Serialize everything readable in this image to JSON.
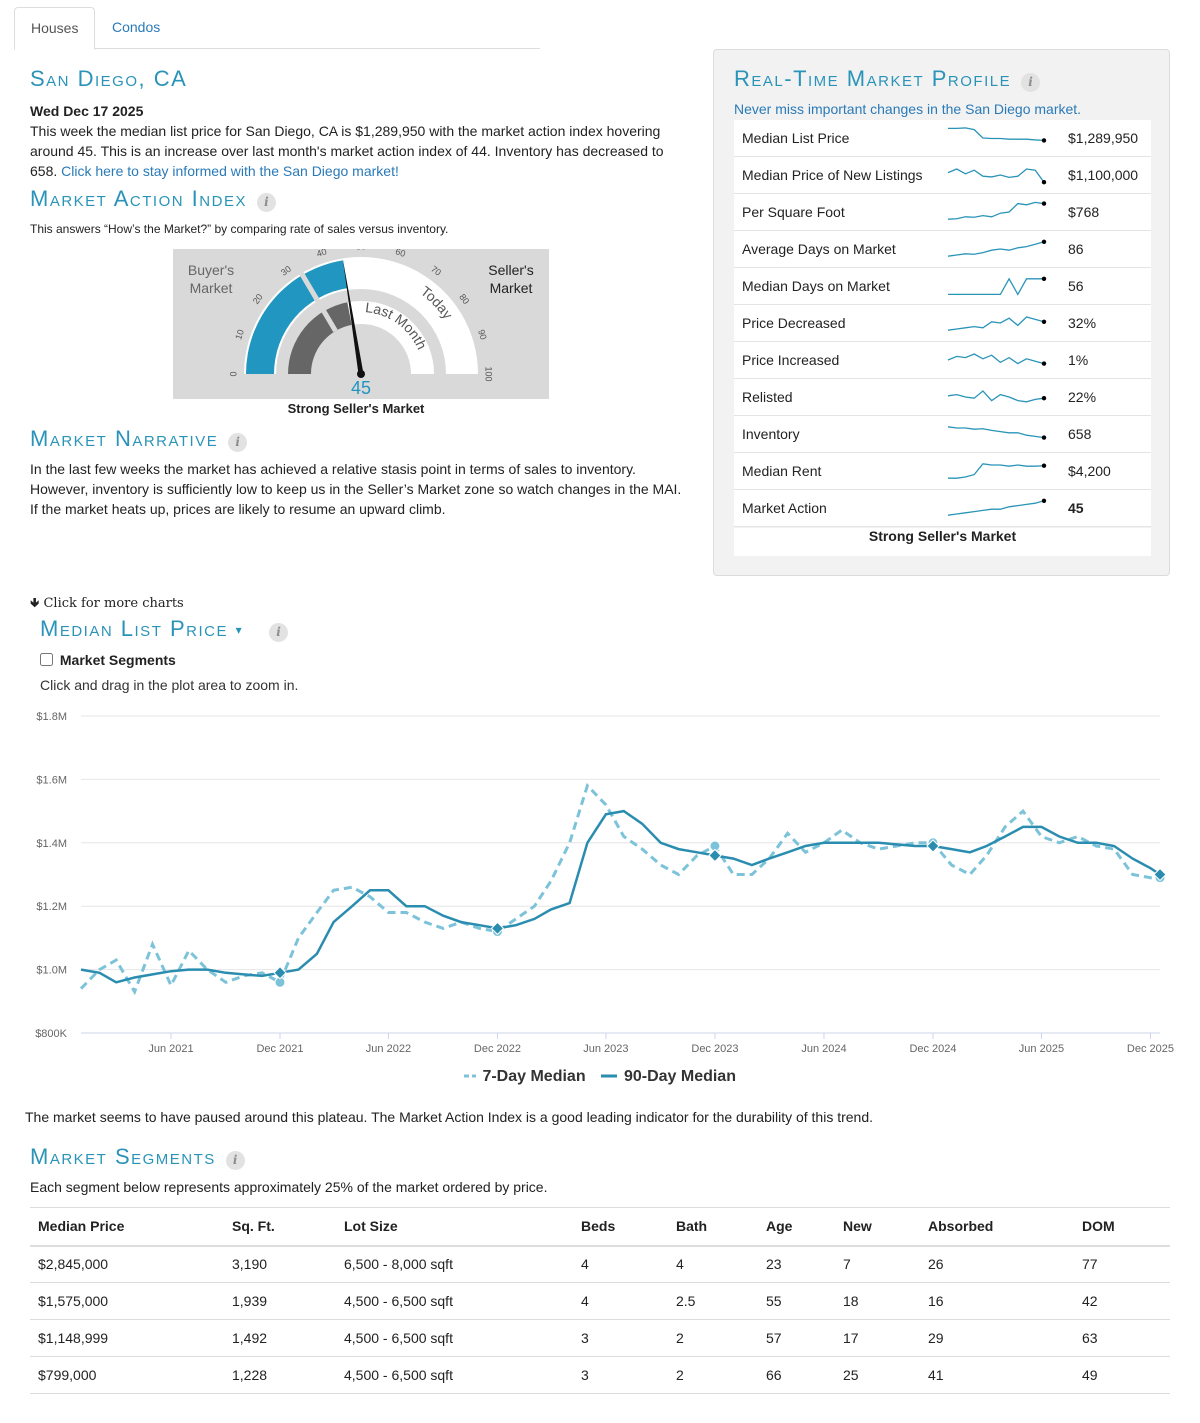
{
  "tabs": [
    {
      "label": "Houses"
    },
    {
      "label": "Condos"
    }
  ],
  "location_title": "San Diego, CA",
  "summary": {
    "date": "Wed Dec 17 2025",
    "text": "This week the median list price for San Diego, CA is $1,289,950 with the market action index hovering around 45. This is an increase over last month's market action index of 44. Inventory has decreased to 658.",
    "link": "Click here to stay informed with the San Diego market!"
  },
  "mai": {
    "title": "Market Action Index",
    "description": "This answers “How’s the Market?” by comparing rate of sales versus inventory.",
    "buyers_label_1": "Buyer's",
    "buyers_label_2": "Market",
    "sellers_label_1": "Seller's",
    "sellers_label_2": "Market",
    "last_month_label": "Last Month",
    "today_label": "Today",
    "value": 45,
    "last_month_value": 44,
    "value_text": "45",
    "ticks": [
      "0",
      "10",
      "20",
      "30",
      "40",
      "50",
      "60",
      "70",
      "80",
      "90",
      "100"
    ],
    "caption": "Strong Seller's Market"
  },
  "narrative": {
    "title": "Market Narrative",
    "text": "In the last few weeks the market has achieved a relative stasis point in terms of sales to inventory. However, inventory is sufficiently low to keep us in the Seller’s Market zone so watch changes in the MAI. If the market heats up, prices are likely to resume an upward climb."
  },
  "profile": {
    "title": "Real-Time Market Profile",
    "subtitle": "Never miss important changes in the San Diego market.",
    "rows": [
      {
        "label": "Median List Price",
        "value": "$1,289,950",
        "spark": [
          0.9,
          0.9,
          0.92,
          0.85,
          0.5,
          0.48,
          0.48,
          0.45,
          0.45,
          0.45,
          0.42,
          0.4
        ]
      },
      {
        "label": "Median Price of New Listings",
        "value": "$1,100,000",
        "spark": [
          0.6,
          0.75,
          0.55,
          0.7,
          0.45,
          0.42,
          0.5,
          0.4,
          0.45,
          0.75,
          0.7,
          0.2
        ]
      },
      {
        "label": "Per Square Foot",
        "value": "$768",
        "spark": [
          0.2,
          0.22,
          0.3,
          0.28,
          0.35,
          0.3,
          0.45,
          0.5,
          0.85,
          0.8,
          0.9,
          0.85
        ]
      },
      {
        "label": "Average Days on Market",
        "value": "86",
        "spark": [
          0.2,
          0.25,
          0.3,
          0.28,
          0.35,
          0.45,
          0.5,
          0.45,
          0.55,
          0.6,
          0.7,
          0.8
        ]
      },
      {
        "label": "Median Days on Market",
        "value": "56",
        "spark": [
          0.15,
          0.15,
          0.15,
          0.15,
          0.15,
          0.15,
          0.15,
          0.8,
          0.15,
          0.8,
          0.8,
          0.8
        ]
      },
      {
        "label": "Price Decreased",
        "value": "32%",
        "spark": [
          0.2,
          0.25,
          0.3,
          0.35,
          0.3,
          0.55,
          0.5,
          0.7,
          0.4,
          0.75,
          0.65,
          0.55
        ]
      },
      {
        "label": "Price Increased",
        "value": "1%",
        "spark": [
          0.5,
          0.65,
          0.6,
          0.75,
          0.55,
          0.7,
          0.4,
          0.6,
          0.35,
          0.55,
          0.45,
          0.35
        ]
      },
      {
        "label": "Relisted",
        "value": "22%",
        "spark": [
          0.55,
          0.6,
          0.5,
          0.45,
          0.75,
          0.35,
          0.6,
          0.5,
          0.35,
          0.3,
          0.4,
          0.45
        ]
      },
      {
        "label": "Inventory",
        "value": "658",
        "spark": [
          0.8,
          0.75,
          0.75,
          0.7,
          0.72,
          0.65,
          0.6,
          0.55,
          0.55,
          0.45,
          0.4,
          0.35
        ]
      },
      {
        "label": "Median Rent",
        "value": "$4,200",
        "spark": [
          0.2,
          0.2,
          0.25,
          0.35,
          0.8,
          0.75,
          0.75,
          0.7,
          0.75,
          0.7,
          0.7,
          0.72
        ]
      },
      {
        "label": "Market Action",
        "value": "45",
        "bold": true,
        "spark": [
          0.2,
          0.25,
          0.3,
          0.35,
          0.4,
          0.45,
          0.45,
          0.55,
          0.6,
          0.65,
          0.7,
          0.8
        ]
      }
    ],
    "caption": "Strong Seller's Market"
  },
  "more_charts": "Click for more charts",
  "median_chart": {
    "title": "Median List Price",
    "segments_checkbox": "Market Segments",
    "hint": "Click and drag in the plot area to zoom in."
  },
  "chart_data": {
    "type": "line",
    "x_ticks": [
      "Jun 2021",
      "Dec 2021",
      "Jun 2022",
      "Dec 2022",
      "Jun 2023",
      "Dec 2023",
      "Jun 2024",
      "Dec 2024",
      "Jun 2025",
      "Dec 2025"
    ],
    "y_ticks": [
      "$800K",
      "$1.0M",
      "$1.2M",
      "$1.4M",
      "$1.6M",
      "$1.8M"
    ],
    "ylim": [
      800000,
      1800000
    ],
    "xlim": [
      "2021-01-01",
      "2025-12-17"
    ],
    "grid": true,
    "legend_position": "bottom-center",
    "series": [
      {
        "name": "7-Day Median",
        "style": "dashed",
        "color": "#7cc3d9",
        "points": [
          [
            "2021-01-01",
            940000
          ],
          [
            "2021-02-01",
            1000000
          ],
          [
            "2021-03-01",
            1030000
          ],
          [
            "2021-04-01",
            930000
          ],
          [
            "2021-05-01",
            1080000
          ],
          [
            "2021-06-01",
            950000
          ],
          [
            "2021-07-01",
            1060000
          ],
          [
            "2021-08-01",
            1000000
          ],
          [
            "2021-09-01",
            960000
          ],
          [
            "2021-10-01",
            980000
          ],
          [
            "2021-11-01",
            990000
          ],
          [
            "2021-12-01",
            960000
          ],
          [
            "2022-01-01",
            1100000
          ],
          [
            "2022-02-01",
            1180000
          ],
          [
            "2022-03-01",
            1250000
          ],
          [
            "2022-04-01",
            1260000
          ],
          [
            "2022-05-01",
            1230000
          ],
          [
            "2022-06-01",
            1180000
          ],
          [
            "2022-07-01",
            1180000
          ],
          [
            "2022-08-01",
            1150000
          ],
          [
            "2022-09-01",
            1130000
          ],
          [
            "2022-10-01",
            1150000
          ],
          [
            "2022-11-01",
            1130000
          ],
          [
            "2022-12-01",
            1120000
          ],
          [
            "2023-01-01",
            1160000
          ],
          [
            "2023-02-01",
            1200000
          ],
          [
            "2023-03-01",
            1280000
          ],
          [
            "2023-04-01",
            1400000
          ],
          [
            "2023-05-01",
            1580000
          ],
          [
            "2023-06-01",
            1520000
          ],
          [
            "2023-07-01",
            1420000
          ],
          [
            "2023-08-01",
            1380000
          ],
          [
            "2023-09-01",
            1330000
          ],
          [
            "2023-10-01",
            1300000
          ],
          [
            "2023-11-01",
            1360000
          ],
          [
            "2023-12-01",
            1390000
          ],
          [
            "2024-01-01",
            1300000
          ],
          [
            "2024-02-01",
            1300000
          ],
          [
            "2024-03-01",
            1350000
          ],
          [
            "2024-04-01",
            1430000
          ],
          [
            "2024-05-01",
            1370000
          ],
          [
            "2024-06-01",
            1400000
          ],
          [
            "2024-07-01",
            1440000
          ],
          [
            "2024-08-01",
            1400000
          ],
          [
            "2024-09-01",
            1380000
          ],
          [
            "2024-10-01",
            1390000
          ],
          [
            "2024-11-01",
            1400000
          ],
          [
            "2024-12-01",
            1400000
          ],
          [
            "2025-01-01",
            1330000
          ],
          [
            "2025-02-01",
            1300000
          ],
          [
            "2025-03-01",
            1360000
          ],
          [
            "2025-04-01",
            1450000
          ],
          [
            "2025-05-01",
            1500000
          ],
          [
            "2025-06-01",
            1420000
          ],
          [
            "2025-07-01",
            1400000
          ],
          [
            "2025-08-01",
            1420000
          ],
          [
            "2025-09-01",
            1390000
          ],
          [
            "2025-10-01",
            1380000
          ],
          [
            "2025-11-01",
            1300000
          ],
          [
            "2025-12-01",
            1290000
          ],
          [
            "2025-12-17",
            1290000
          ]
        ]
      },
      {
        "name": "90-Day Median",
        "style": "solid",
        "color": "#2a8db0",
        "points": [
          [
            "2021-01-01",
            1000000
          ],
          [
            "2021-02-01",
            990000
          ],
          [
            "2021-03-01",
            960000
          ],
          [
            "2021-04-01",
            975000
          ],
          [
            "2021-05-01",
            985000
          ],
          [
            "2021-06-01",
            995000
          ],
          [
            "2021-07-01",
            1000000
          ],
          [
            "2021-08-01",
            1000000
          ],
          [
            "2021-09-01",
            990000
          ],
          [
            "2021-10-01",
            985000
          ],
          [
            "2021-11-01",
            980000
          ],
          [
            "2021-12-01",
            990000
          ],
          [
            "2022-01-01",
            1000000
          ],
          [
            "2022-02-01",
            1050000
          ],
          [
            "2022-03-01",
            1150000
          ],
          [
            "2022-04-01",
            1200000
          ],
          [
            "2022-05-01",
            1250000
          ],
          [
            "2022-06-01",
            1250000
          ],
          [
            "2022-07-01",
            1200000
          ],
          [
            "2022-08-01",
            1200000
          ],
          [
            "2022-09-01",
            1170000
          ],
          [
            "2022-10-01",
            1150000
          ],
          [
            "2022-11-01",
            1140000
          ],
          [
            "2022-12-01",
            1130000
          ],
          [
            "2023-01-01",
            1140000
          ],
          [
            "2023-02-01",
            1160000
          ],
          [
            "2023-03-01",
            1190000
          ],
          [
            "2023-04-01",
            1210000
          ],
          [
            "2023-05-01",
            1400000
          ],
          [
            "2023-06-01",
            1490000
          ],
          [
            "2023-07-01",
            1500000
          ],
          [
            "2023-08-01",
            1460000
          ],
          [
            "2023-09-01",
            1400000
          ],
          [
            "2023-10-01",
            1380000
          ],
          [
            "2023-11-01",
            1370000
          ],
          [
            "2023-12-01",
            1360000
          ],
          [
            "2024-01-01",
            1350000
          ],
          [
            "2024-02-01",
            1330000
          ],
          [
            "2024-03-01",
            1350000
          ],
          [
            "2024-04-01",
            1370000
          ],
          [
            "2024-05-01",
            1390000
          ],
          [
            "2024-06-01",
            1400000
          ],
          [
            "2024-07-01",
            1400000
          ],
          [
            "2024-08-01",
            1400000
          ],
          [
            "2024-09-01",
            1400000
          ],
          [
            "2024-10-01",
            1395000
          ],
          [
            "2024-11-01",
            1390000
          ],
          [
            "2024-12-01",
            1390000
          ],
          [
            "2025-01-01",
            1380000
          ],
          [
            "2025-02-01",
            1370000
          ],
          [
            "2025-03-01",
            1390000
          ],
          [
            "2025-04-01",
            1420000
          ],
          [
            "2025-05-01",
            1450000
          ],
          [
            "2025-06-01",
            1450000
          ],
          [
            "2025-07-01",
            1420000
          ],
          [
            "2025-08-01",
            1400000
          ],
          [
            "2025-09-01",
            1400000
          ],
          [
            "2025-10-01",
            1390000
          ],
          [
            "2025-11-01",
            1350000
          ],
          [
            "2025-12-01",
            1320000
          ],
          [
            "2025-12-17",
            1300000
          ]
        ]
      }
    ]
  },
  "plateau_text": "The market seems to have paused around this plateau. The Market Action Index is a good leading indicator for the durability of this trend.",
  "segments": {
    "title": "Market Segments",
    "description": "Each segment below represents approximately 25% of the market ordered by price.",
    "headers": [
      "Median Price",
      "Sq. Ft.",
      "Lot Size",
      "Beds",
      "Bath",
      "Age",
      "New",
      "Absorbed",
      "DOM"
    ],
    "rows": [
      [
        "$2,845,000",
        "3,190",
        "6,500 - 8,000 sqft",
        "4",
        "4",
        "23",
        "7",
        "26",
        "77"
      ],
      [
        "$1,575,000",
        "1,939",
        "4,500 - 6,500 sqft",
        "4",
        "2.5",
        "55",
        "18",
        "16",
        "42"
      ],
      [
        "$1,148,999",
        "1,492",
        "4,500 - 6,500 sqft",
        "3",
        "2",
        "57",
        "17",
        "29",
        "63"
      ],
      [
        "$799,000",
        "1,228",
        "4,500 - 6,500 sqft",
        "3",
        "2",
        "66",
        "25",
        "41",
        "49"
      ]
    ]
  },
  "colors": {
    "accent": "#2a94b8",
    "gauge_fill": "#2196c0",
    "link": "#2a7ab8"
  }
}
